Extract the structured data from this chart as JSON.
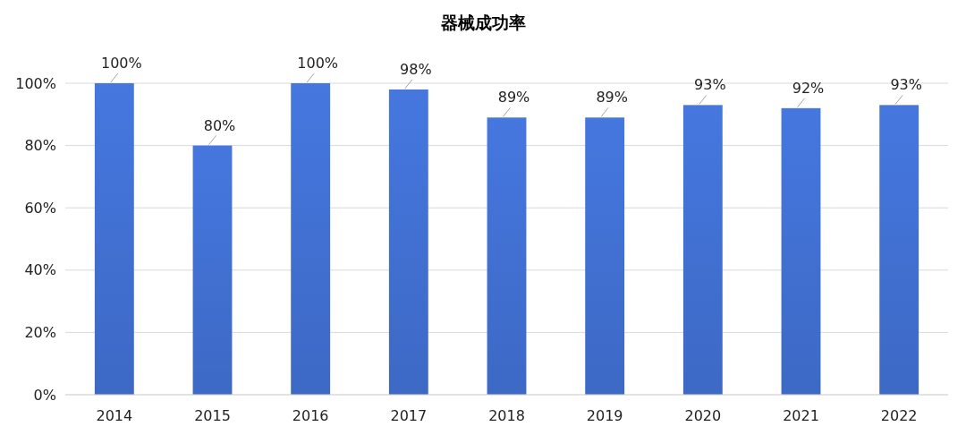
{
  "chart_data": {
    "type": "bar",
    "title": "器械成功率",
    "categories": [
      "2014",
      "2015",
      "2016",
      "2017",
      "2018",
      "2019",
      "2020",
      "2021",
      "2022"
    ],
    "values": [
      100,
      80,
      100,
      98,
      89,
      89,
      93,
      92,
      93
    ],
    "value_labels": [
      "100%",
      "80%",
      "100%",
      "98%",
      "89%",
      "89%",
      "93%",
      "92%",
      "93%"
    ],
    "color": "#3d69c5",
    "ylim": [
      0,
      100
    ],
    "yticks": [
      {
        "value": 0,
        "label": "0%"
      },
      {
        "value": 20,
        "label": "20%"
      },
      {
        "value": 40,
        "label": "40%"
      },
      {
        "value": 60,
        "label": "60%"
      },
      {
        "value": 80,
        "label": "80%"
      },
      {
        "value": 100,
        "label": "100%"
      }
    ],
    "grid": "y"
  }
}
